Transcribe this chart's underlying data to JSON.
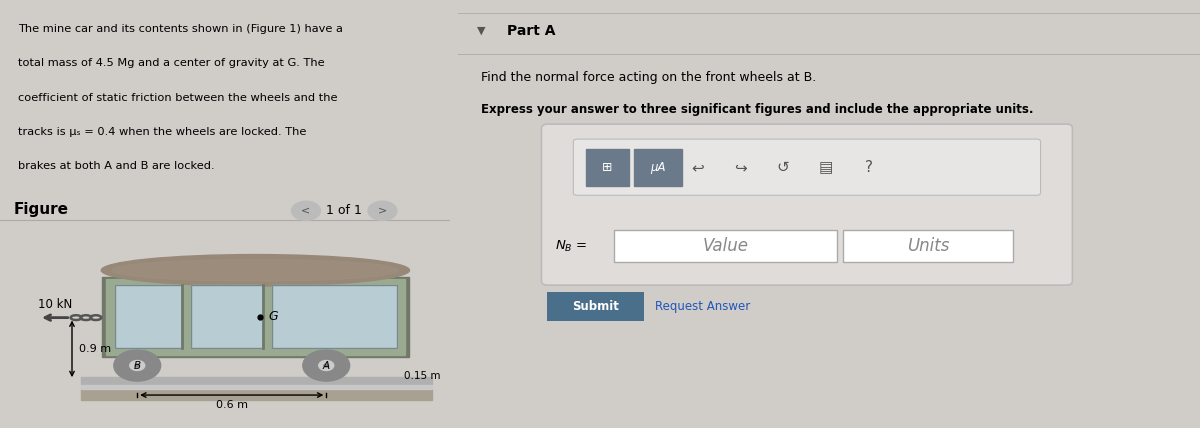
{
  "bg_color": "#d6ecf0",
  "panel_bg": "#bdd8e0",
  "right_bg": "#d0ccc8",
  "problem_text_lines": [
    "The mine car and its contents shown in (Figure 1) have a",
    "total mass of 4.5 Mg and a center of gravity at G. The",
    "coefficient of static friction between the wheels and the",
    "tracks is μₛ = 0.4 when the wheels are locked. The",
    "brakes at both A and B are locked."
  ],
  "figure_label": "Figure",
  "nav_text": "1 of 1",
  "part_a_label": "Part A",
  "question_line1": "Find the normal force acting on the front wheels at B.",
  "question_line2": "Express your answer to three significant figures and include the appropriate units.",
  "nb_label": "N_B =",
  "value_placeholder": "Value",
  "units_placeholder": "Units",
  "submit_text": "Submit",
  "request_answer_text": "Request Answer",
  "force_label": "10 kN",
  "dim1_label": "0.9 m",
  "dim2_label": "0.15 m",
  "dim3_label": "0.6 m",
  "g_label": "G",
  "a_label": "A",
  "b_label": "B",
  "car_body_color": "#9aaa90",
  "car_window_color": "#b8ccd4",
  "wheel_color": "#888888",
  "arrow_color": "#444444",
  "submit_btn_color": "#4a6f8a",
  "toolbar_color": "#6a7a8a",
  "divider_color": "#777777"
}
